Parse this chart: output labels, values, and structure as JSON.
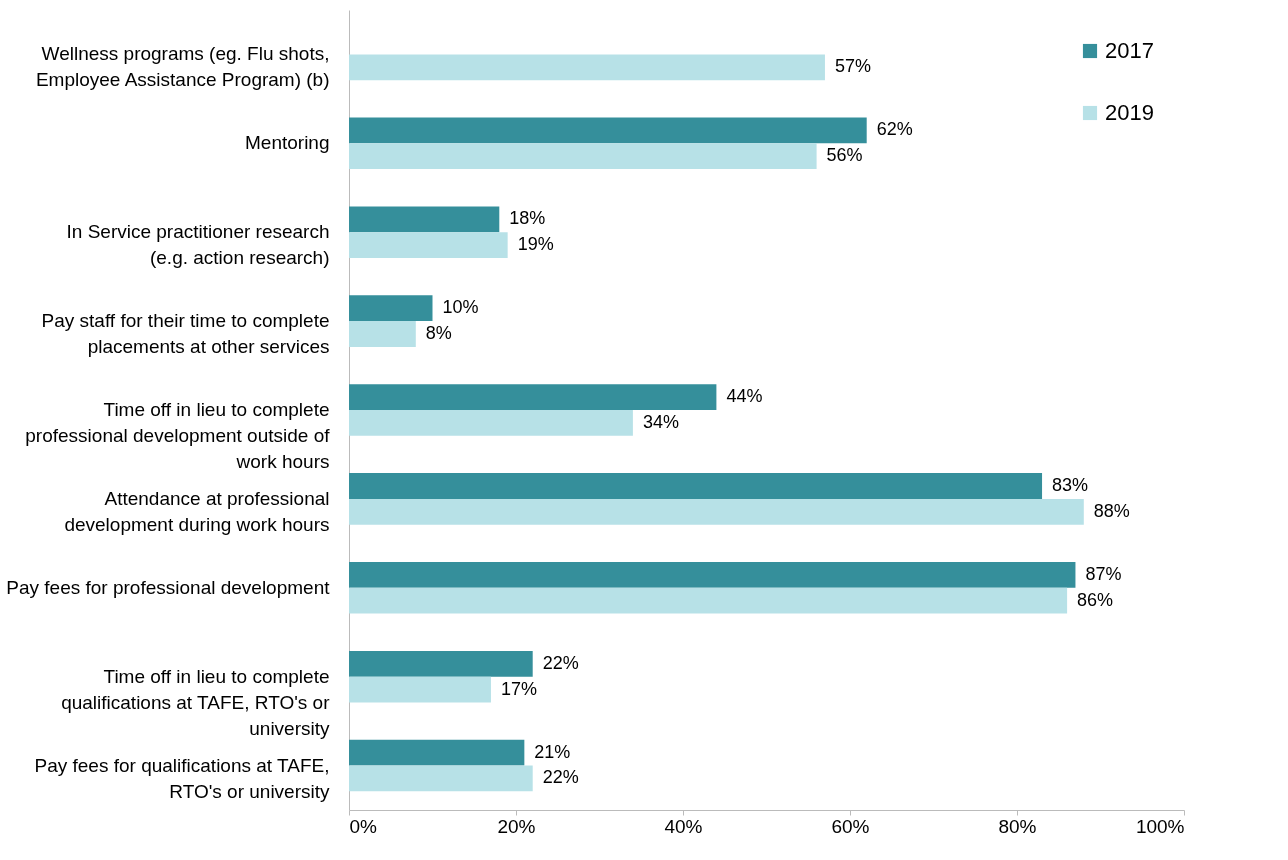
{
  "chart_data": {
    "type": "bar",
    "orientation": "horizontal",
    "categories": [
      "Wellness programs (eg. Flu shots, Employee Assistance Program) (b)",
      "Mentoring",
      "In Service practitioner research (e.g. action research)",
      "Pay staff for their time to complete placements at other services",
      "Time off in lieu to complete professional development outside of work hours",
      "Attendance at professional development during work hours",
      "Pay fees for professional development",
      "Time off in lieu to complete qualifications at TAFE, RTO's or university",
      "Pay fees for qualifications at TAFE, RTO's or university"
    ],
    "series": [
      {
        "name": "2017",
        "color": "#358f9b",
        "values": [
          null,
          62,
          18,
          10,
          44,
          83,
          87,
          22,
          21
        ],
        "value_labels": [
          null,
          "62%",
          "18%",
          "10%",
          "44%",
          "83%",
          "87%",
          "22%",
          "21%"
        ]
      },
      {
        "name": "2019",
        "color": "#b7e1e7",
        "values": [
          57,
          56,
          19,
          8,
          34,
          88,
          86,
          17,
          22
        ],
        "value_labels": [
          "57%",
          "56%",
          "19%",
          "8%",
          "34%",
          "88%",
          "86%",
          "17%",
          "22%"
        ]
      }
    ],
    "xlim": [
      0,
      100
    ],
    "xticks": [
      {
        "value": 0,
        "label": "0%"
      },
      {
        "value": 20,
        "label": "20%"
      },
      {
        "value": 40,
        "label": "40%"
      },
      {
        "value": 60,
        "label": "60%"
      },
      {
        "value": 80,
        "label": "80%"
      },
      {
        "value": 100,
        "label": "100%"
      }
    ],
    "legend": "top right"
  }
}
